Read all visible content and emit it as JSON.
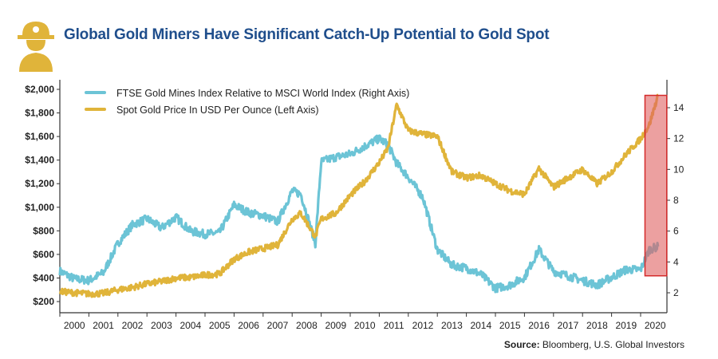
{
  "chart_data": {
    "type": "line",
    "title": "Global Gold Miners Have Significant Catch-Up Potential to Gold Spot",
    "source_label": "Source:",
    "source_text": " Bloomberg, U.S. Global Investors",
    "x_ticks": [
      "2000",
      "2001",
      "2002",
      "2003",
      "2004",
      "2005",
      "2006",
      "2007",
      "2008",
      "2009",
      "2010",
      "2011",
      "2012",
      "2013",
      "2014",
      "2015",
      "2016",
      "2017",
      "2018",
      "2019",
      "2020"
    ],
    "xlim": [
      2000,
      2020.9
    ],
    "left_axis": {
      "ticks": [
        "$200",
        "$400",
        "$600",
        "$800",
        "$1,000",
        "$1,200",
        "$1,400",
        "$1,600",
        "$1,800",
        "$2,000"
      ],
      "values": [
        200,
        400,
        600,
        800,
        1000,
        1200,
        1400,
        1600,
        1800,
        2000
      ],
      "ylim": [
        100,
        2100
      ]
    },
    "right_axis": {
      "ticks": [
        "2",
        "4",
        "6",
        "8",
        "10",
        "12",
        "14"
      ],
      "values": [
        2,
        4,
        6,
        8,
        10,
        12,
        14
      ],
      "ylim": [
        1,
        15.5
      ]
    },
    "series": [
      {
        "name": "FTSE Gold Mines Index Relative to MSCI World Index (Right Axis)",
        "axis": "right",
        "color": "#6cc4d6",
        "x": [
          2000,
          2000.5,
          2001,
          2001.5,
          2002,
          2002.5,
          2003,
          2003.5,
          2004,
          2004.5,
          2005,
          2005.5,
          2006,
          2006.5,
          2007,
          2007.5,
          2008,
          2008.3,
          2008.8,
          2009,
          2009.5,
          2010,
          2010.5,
          2011,
          2011.3,
          2011.6,
          2012,
          2012.5,
          2013,
          2013.5,
          2014,
          2014.5,
          2015,
          2015.5,
          2016,
          2016.5,
          2017,
          2017.5,
          2018,
          2018.5,
          2019,
          2019.5,
          2020,
          2020.3,
          2020.6
        ],
        "y": [
          3.4,
          2.9,
          2.8,
          3.3,
          5.2,
          6.4,
          6.8,
          6.2,
          6.9,
          6.0,
          5.8,
          5.9,
          7.7,
          7.2,
          7.0,
          6.6,
          8.6,
          8.4,
          5.2,
          10.5,
          10.8,
          11.0,
          11.5,
          12.0,
          11.6,
          10.4,
          9.5,
          8.2,
          4.8,
          3.8,
          3.6,
          3.2,
          2.3,
          2.5,
          3.0,
          4.8,
          3.4,
          3.1,
          2.8,
          2.5,
          3.0,
          3.5,
          3.5,
          4.8,
          5.0
        ]
      },
      {
        "name": "Spot Gold Price In USD Per Ounce (Left Axis)",
        "axis": "left",
        "color": "#e0b43a",
        "x": [
          2000,
          2000.5,
          2001,
          2001.5,
          2002,
          2002.5,
          2003,
          2003.5,
          2004,
          2004.5,
          2005,
          2005.5,
          2006,
          2006.5,
          2007,
          2007.5,
          2008,
          2008.3,
          2008.8,
          2009,
          2009.5,
          2010,
          2010.5,
          2011,
          2011.3,
          2011.6,
          2012,
          2012.5,
          2013,
          2013.5,
          2014,
          2014.5,
          2015,
          2015.5,
          2016,
          2016.5,
          2017,
          2017.5,
          2018,
          2018.5,
          2019,
          2019.5,
          2020,
          2020.3,
          2020.6
        ],
        "y": [
          285,
          275,
          265,
          270,
          300,
          320,
          350,
          370,
          400,
          405,
          425,
          435,
          560,
          620,
          650,
          680,
          900,
          950,
          750,
          900,
          950,
          1100,
          1220,
          1380,
          1500,
          1870,
          1650,
          1620,
          1600,
          1300,
          1250,
          1270,
          1200,
          1140,
          1110,
          1330,
          1170,
          1250,
          1320,
          1200,
          1300,
          1450,
          1580,
          1700,
          1950
        ]
      }
    ],
    "highlight": {
      "x_range": [
        2020.15,
        2020.9
      ],
      "right_axis_range": [
        3.1,
        14.8
      ],
      "color": "#e06060"
    },
    "legend_placement": "top-left",
    "grid": false
  },
  "colors": {
    "title": "#1f4e8c",
    "logo": "#e0b43a"
  }
}
